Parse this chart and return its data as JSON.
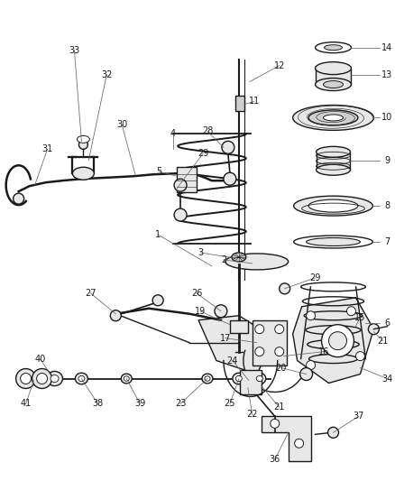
{
  "bg": "#ffffff",
  "lc": "#1a1a1a",
  "label_c": "#1a1a1a",
  "lw": 1.0,
  "lw_thick": 1.8,
  "lw_thin": 0.6,
  "fs": 7.0,
  "fig_w": 4.38,
  "fig_h": 5.33,
  "dpi": 100
}
